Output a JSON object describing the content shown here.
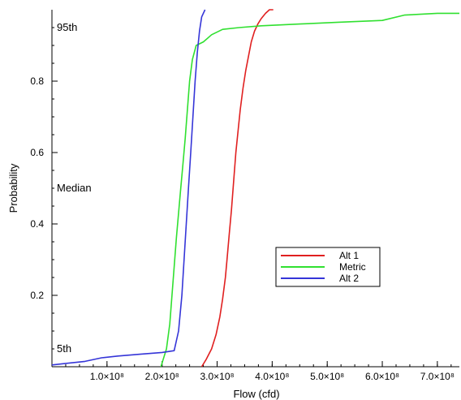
{
  "chart_data": {
    "type": "line",
    "title": "",
    "xlabel": "Flow (cfd)",
    "ylabel": "Probability",
    "xlim": [
      0,
      740000000
    ],
    "ylim": [
      0,
      1.0
    ],
    "x_ticks": [
      {
        "value": 100000000,
        "label": "1.0×10⁸"
      },
      {
        "value": 200000000,
        "label": "2.0×10⁸"
      },
      {
        "value": 300000000,
        "label": "3.0×10⁸"
      },
      {
        "value": 400000000,
        "label": "4.0×10⁸"
      },
      {
        "value": 500000000,
        "label": "5.0×10⁸"
      },
      {
        "value": 600000000,
        "label": "6.0×10⁸"
      },
      {
        "value": 700000000,
        "label": "7.0×10⁸"
      }
    ],
    "y_ticks": [
      {
        "value": 0.2,
        "label": "0.2"
      },
      {
        "value": 0.4,
        "label": "0.4"
      },
      {
        "value": 0.6,
        "label": "0.6"
      },
      {
        "value": 0.8,
        "label": "0.8"
      }
    ],
    "annotations": [
      {
        "text": "95th",
        "y": 0.95
      },
      {
        "text": "Median",
        "y": 0.5
      },
      {
        "text": "5th",
        "y": 0.05
      }
    ],
    "grid": false,
    "legend_position": "center-right",
    "series": [
      {
        "name": "Alt 1",
        "color": "#e02020",
        "points": [
          [
            272000000,
            0.0
          ],
          [
            280000000,
            0.02
          ],
          [
            290000000,
            0.05
          ],
          [
            298000000,
            0.09
          ],
          [
            305000000,
            0.14
          ],
          [
            310000000,
            0.19
          ],
          [
            315000000,
            0.25
          ],
          [
            318000000,
            0.3
          ],
          [
            322000000,
            0.37
          ],
          [
            326000000,
            0.44
          ],
          [
            330000000,
            0.52
          ],
          [
            334000000,
            0.6
          ],
          [
            338000000,
            0.66
          ],
          [
            342000000,
            0.72
          ],
          [
            347000000,
            0.78
          ],
          [
            352000000,
            0.83
          ],
          [
            357000000,
            0.87
          ],
          [
            362000000,
            0.91
          ],
          [
            368000000,
            0.94
          ],
          [
            374000000,
            0.96
          ],
          [
            380000000,
            0.975
          ],
          [
            388000000,
            0.99
          ],
          [
            395000000,
            1.0
          ],
          [
            402000000,
            1.0
          ]
        ]
      },
      {
        "name": "Metric",
        "color": "#30e030",
        "points": [
          [
            198000000,
            0.0
          ],
          [
            202000000,
            0.02
          ],
          [
            208000000,
            0.05
          ],
          [
            214000000,
            0.12
          ],
          [
            218000000,
            0.2
          ],
          [
            222000000,
            0.28
          ],
          [
            226000000,
            0.36
          ],
          [
            230000000,
            0.43
          ],
          [
            234000000,
            0.5
          ],
          [
            238000000,
            0.57
          ],
          [
            242000000,
            0.64
          ],
          [
            246000000,
            0.72
          ],
          [
            250000000,
            0.8
          ],
          [
            255000000,
            0.86
          ],
          [
            262000000,
            0.9
          ],
          [
            275000000,
            0.91
          ],
          [
            290000000,
            0.93
          ],
          [
            310000000,
            0.945
          ],
          [
            340000000,
            0.95
          ],
          [
            380000000,
            0.955
          ],
          [
            450000000,
            0.96
          ],
          [
            520000000,
            0.965
          ],
          [
            600000000,
            0.97
          ],
          [
            640000000,
            0.985
          ],
          [
            700000000,
            0.99
          ],
          [
            740000000,
            0.99
          ]
        ]
      },
      {
        "name": "Alt 2",
        "color": "#3535d8",
        "points": [
          [
            0,
            0.005
          ],
          [
            30000000,
            0.01
          ],
          [
            60000000,
            0.015
          ],
          [
            90000000,
            0.025
          ],
          [
            120000000,
            0.03
          ],
          [
            160000000,
            0.035
          ],
          [
            200000000,
            0.04
          ],
          [
            222000000,
            0.045
          ],
          [
            230000000,
            0.1
          ],
          [
            236000000,
            0.2
          ],
          [
            240000000,
            0.3
          ],
          [
            244000000,
            0.4
          ],
          [
            248000000,
            0.5
          ],
          [
            252000000,
            0.6
          ],
          [
            256000000,
            0.7
          ],
          [
            260000000,
            0.8
          ],
          [
            264000000,
            0.88
          ],
          [
            268000000,
            0.94
          ],
          [
            272000000,
            0.98
          ],
          [
            278000000,
            1.0
          ]
        ]
      }
    ]
  }
}
